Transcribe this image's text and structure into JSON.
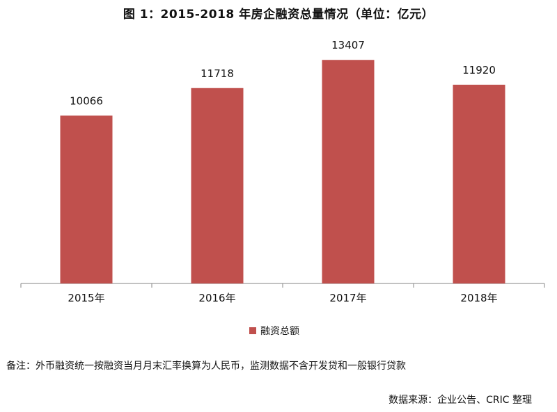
{
  "title": "图 1：2015-2018 年房企融资总量情况（单位：亿元）",
  "chart_data": {
    "type": "bar",
    "categories": [
      "2015年",
      "2016年",
      "2017年",
      "2018年"
    ],
    "series": [
      {
        "name": "融资总额",
        "values": [
          10066,
          11718,
          13407,
          11920
        ]
      }
    ],
    "data_labels": [
      "10066",
      "11718",
      "13407",
      "11920"
    ],
    "ylim": [
      0,
      14500
    ],
    "grid": false,
    "legend_position": "bottom-center",
    "colors": {
      "bar": "#c0504d",
      "axis": "#868686"
    }
  },
  "note": "备注：外币融资统一按融资当月月末汇率换算为人民币，监测数据不含开发贷和一般银行贷款",
  "source": "数据来源：企业公告、CRIC 整理"
}
